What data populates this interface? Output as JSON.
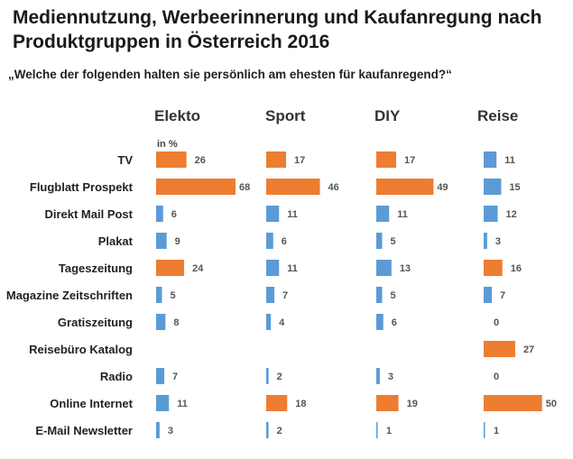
{
  "chart_data": {
    "type": "bar",
    "orientation": "horizontal",
    "title": "Mediennutzung, Werbeerinnerung und Kaufanregung nach Produktgruppen in Österreich 2016",
    "subtitle": "„Welche der folgenden halten sie persönlich am ehesten für kaufanregend?“",
    "unit_label": "in %",
    "categories": [
      "TV",
      "Flugblatt Prospekt",
      "Direkt Mail Post",
      "Plakat",
      "Tageszeitung",
      "Magazine Zeitschriften",
      "Gratiszeitung",
      "Reisebüro Katalog",
      "Radio",
      "Online Internet",
      "E-Mail Newsletter"
    ],
    "series": [
      {
        "name": "Elekto",
        "values": [
          26,
          68,
          6,
          9,
          24,
          5,
          8,
          null,
          7,
          11,
          3
        ],
        "highlight": [
          true,
          true,
          false,
          false,
          true,
          false,
          false,
          false,
          false,
          false,
          false
        ]
      },
      {
        "name": "Sport",
        "values": [
          17,
          46,
          11,
          6,
          11,
          7,
          4,
          null,
          2,
          18,
          2
        ],
        "highlight": [
          true,
          true,
          false,
          false,
          false,
          false,
          false,
          false,
          false,
          true,
          false
        ]
      },
      {
        "name": "DIY",
        "values": [
          17,
          49,
          11,
          5,
          13,
          5,
          6,
          null,
          3,
          19,
          1
        ],
        "highlight": [
          true,
          true,
          false,
          false,
          false,
          false,
          false,
          false,
          false,
          true,
          false
        ]
      },
      {
        "name": "Reise",
        "values": [
          11,
          15,
          12,
          3,
          16,
          7,
          0,
          27,
          0,
          50,
          1
        ],
        "highlight": [
          false,
          false,
          false,
          false,
          true,
          false,
          false,
          true,
          false,
          true,
          false
        ]
      }
    ],
    "colors": {
      "highlight": "#ED7D31",
      "normal": "#5B9BD5"
    },
    "grid": false,
    "legend": "none"
  }
}
